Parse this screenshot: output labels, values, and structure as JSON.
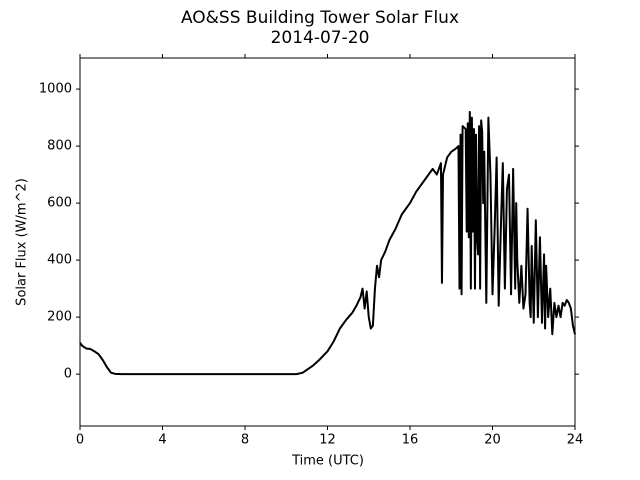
{
  "chart_data": {
    "type": "line",
    "title": "AO&SS Building Tower Solar Flux",
    "subtitle": "2014-07-20",
    "x_label": "Time (UTC)",
    "y_label": "Solar Flux (W/m^2)",
    "color": "#000000",
    "xlim": [
      0,
      24
    ],
    "ylim": [
      -182,
      1109
    ],
    "xticks": [
      0,
      4,
      8,
      12,
      16,
      20,
      24
    ],
    "yticks": [
      0,
      200,
      400,
      600,
      800,
      1000
    ],
    "x": [
      0,
      0.1,
      0.2,
      0.3,
      0.5,
      0.7,
      0.9,
      1.1,
      1.3,
      1.5,
      1.7,
      2,
      10.5,
      10.8,
      11,
      11.3,
      11.6,
      12,
      12.3,
      12.6,
      12.9,
      13.2,
      13.4,
      13.6,
      13.7,
      13.8,
      13.9,
      14,
      14.1,
      14.2,
      14.3,
      14.4,
      14.5,
      14.6,
      14.8,
      15,
      15.3,
      15.6,
      16,
      16.3,
      16.6,
      16.9,
      17.1,
      17.3,
      17.5,
      17.55,
      17.6,
      17.8,
      18,
      18.2,
      18.35,
      18.4,
      18.45,
      18.5,
      18.55,
      18.7,
      18.75,
      18.8,
      18.85,
      18.9,
      18.95,
      19,
      19.05,
      19.1,
      19.15,
      19.2,
      19.25,
      19.3,
      19.35,
      19.4,
      19.45,
      19.5,
      19.55,
      19.6,
      19.7,
      19.8,
      19.9,
      20,
      20.1,
      20.2,
      20.3,
      20.4,
      20.5,
      20.6,
      20.7,
      20.8,
      20.9,
      21,
      21.1,
      21.15,
      21.2,
      21.3,
      21.4,
      21.5,
      21.6,
      21.7,
      21.8,
      21.85,
      21.9,
      22,
      22.1,
      22.2,
      22.3,
      22.4,
      22.5,
      22.55,
      22.6,
      22.7,
      22.8,
      22.9,
      23,
      23.1,
      23.2,
      23.3,
      23.4,
      23.5,
      23.6,
      23.7,
      23.8,
      23.9,
      24
    ],
    "values": [
      110,
      100,
      95,
      90,
      88,
      80,
      70,
      50,
      25,
      5,
      1,
      0,
      0,
      5,
      15,
      30,
      50,
      80,
      115,
      160,
      190,
      215,
      240,
      270,
      300,
      230,
      290,
      200,
      160,
      170,
      300,
      380,
      340,
      400,
      430,
      470,
      510,
      560,
      600,
      640,
      670,
      700,
      720,
      700,
      740,
      320,
      700,
      760,
      780,
      790,
      800,
      300,
      840,
      280,
      870,
      860,
      500,
      880,
      480,
      920,
      300,
      900,
      500,
      860,
      300,
      840,
      480,
      420,
      870,
      300,
      890,
      850,
      600,
      780,
      250,
      900,
      700,
      280,
      500,
      760,
      240,
      500,
      740,
      300,
      650,
      700,
      280,
      720,
      300,
      600,
      400,
      250,
      380,
      230,
      280,
      580,
      250,
      200,
      450,
      180,
      540,
      200,
      480,
      180,
      420,
      160,
      380,
      200,
      300,
      140,
      250,
      200,
      240,
      200,
      250,
      240,
      260,
      250,
      230,
      170,
      140
    ]
  }
}
